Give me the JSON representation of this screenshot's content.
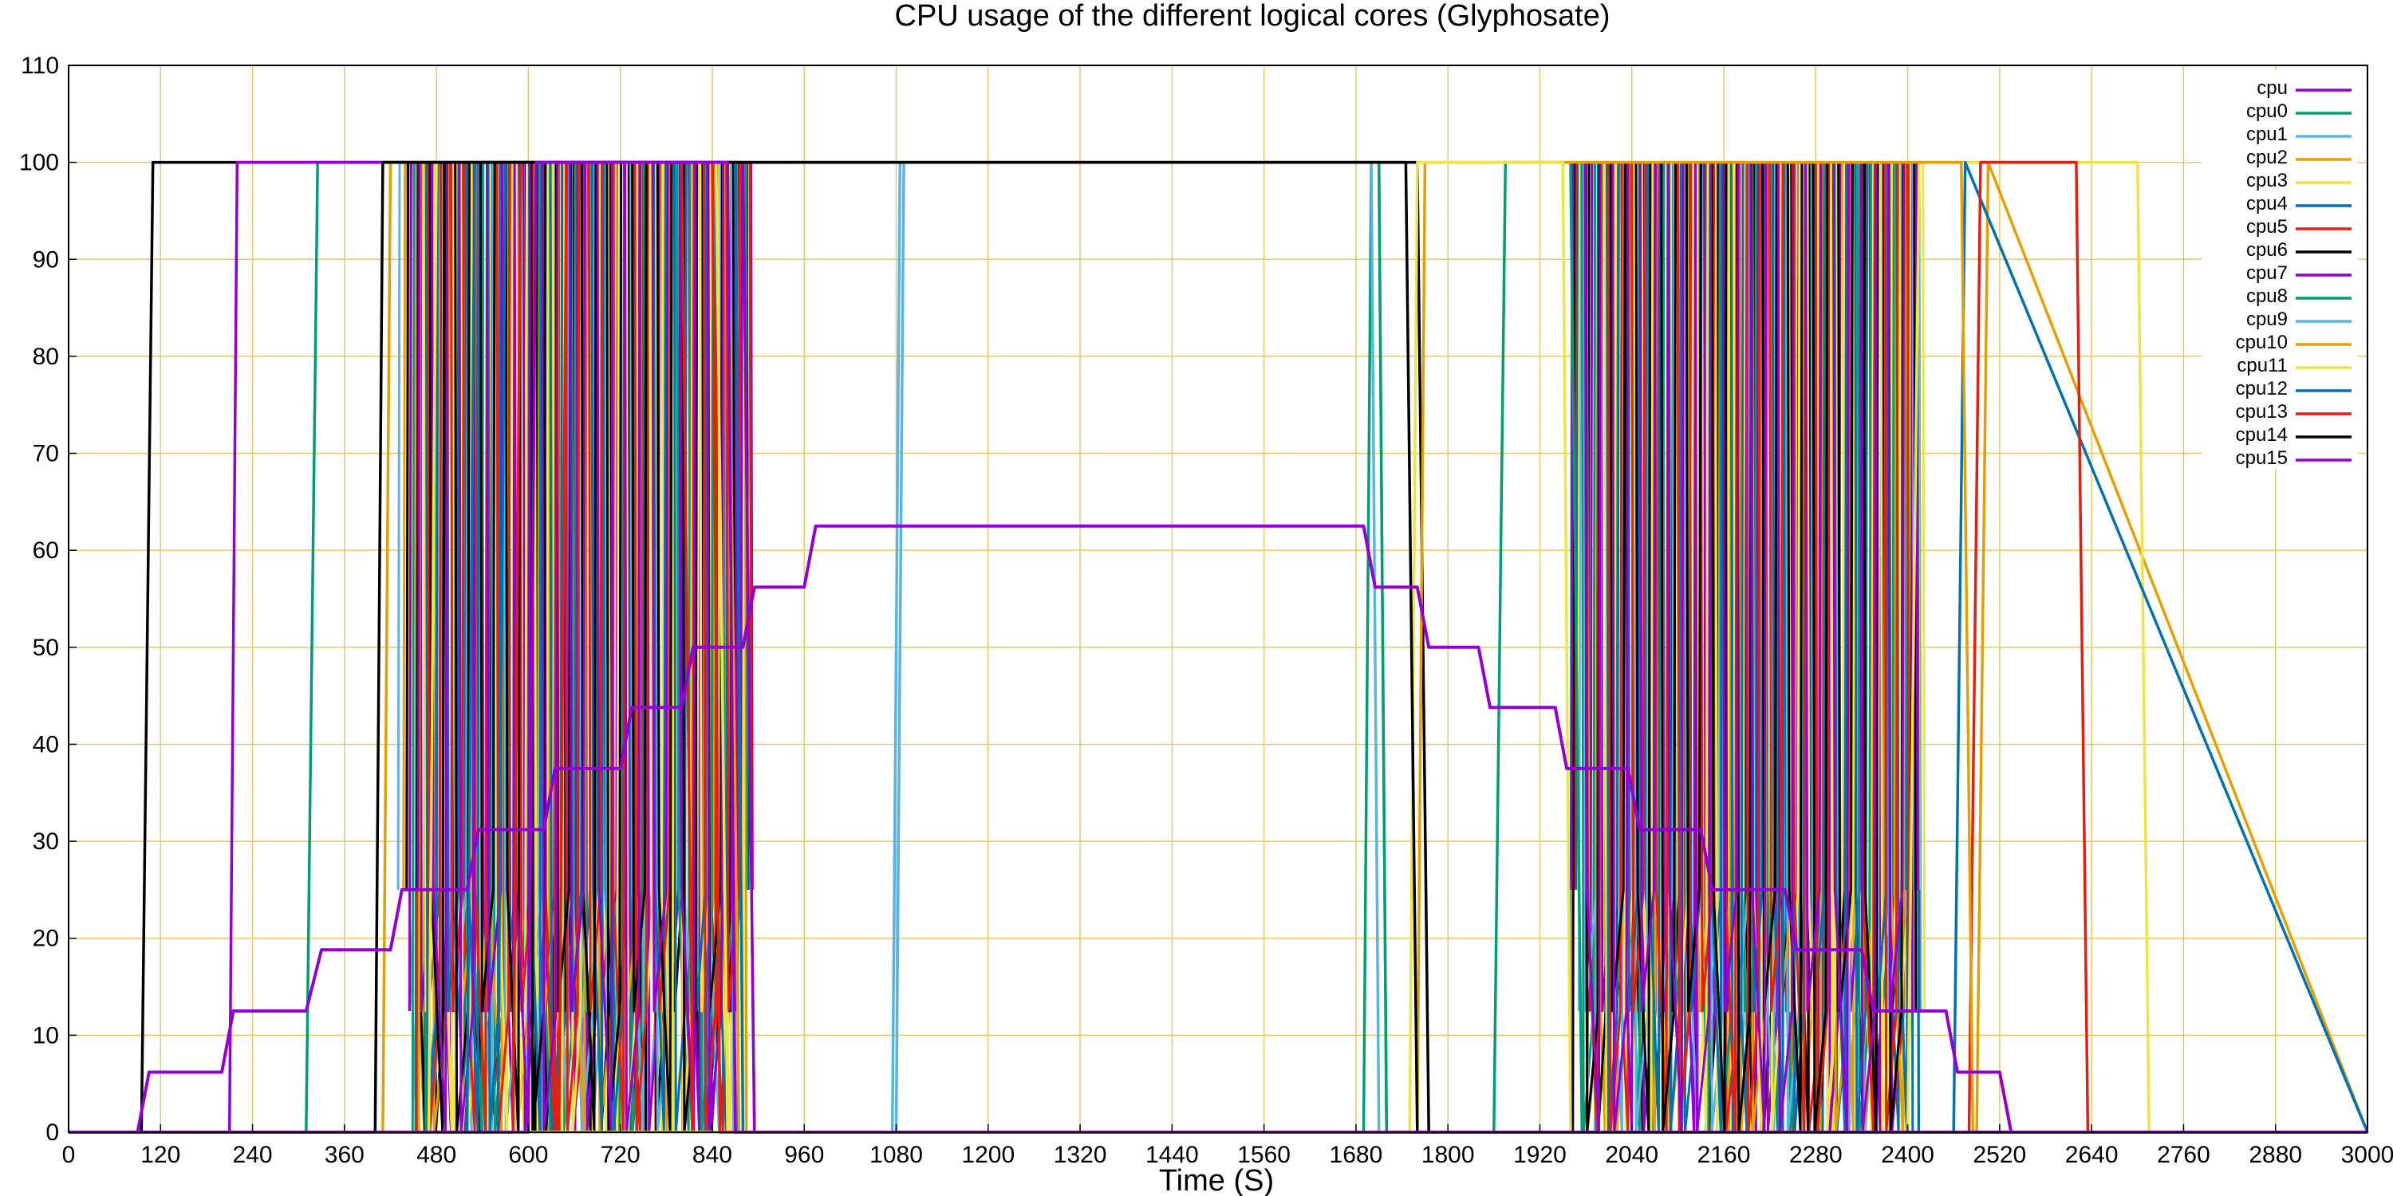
{
  "chart_data": {
    "type": "line",
    "title": "CPU usage of the different logical cores (Glyphosate)",
    "xlabel": "Time (S)",
    "ylabel": "",
    "xlim": [
      0,
      3000
    ],
    "ylim": [
      0,
      110
    ],
    "xticks": [
      0,
      120,
      240,
      360,
      480,
      600,
      720,
      840,
      960,
      1080,
      1200,
      1320,
      1440,
      1560,
      1680,
      1800,
      1920,
      2040,
      2160,
      2280,
      2400,
      2520,
      2640,
      2760,
      2880,
      3000
    ],
    "yticks": [
      0,
      10,
      20,
      30,
      40,
      50,
      60,
      70,
      80,
      90,
      100,
      110
    ],
    "grid": true,
    "legend_position": "top-right",
    "series": [
      {
        "name": "cpu",
        "color": "#9400d3",
        "x": [
          0,
          90,
          105,
          200,
          215,
          310,
          330,
          420,
          435,
          520,
          535,
          620,
          635,
          720,
          735,
          800,
          815,
          880,
          895,
          960,
          975,
          1050,
          1065,
          1690,
          1705,
          1760,
          1775,
          1840,
          1855,
          1940,
          1955,
          2035,
          2050,
          2130,
          2145,
          2240,
          2255,
          2340,
          2355,
          2450,
          2465,
          2520,
          2535,
          2620,
          2635,
          2700,
          2715,
          3000
        ],
        "values": [
          0,
          0,
          6.2,
          6.2,
          12.5,
          12.5,
          18.8,
          18.8,
          25,
          25,
          31.2,
          31.2,
          37.5,
          37.5,
          43.8,
          43.8,
          50,
          50,
          56.2,
          56.2,
          62.5,
          62.5,
          62.5,
          62.5,
          56.2,
          56.2,
          50,
          50,
          43.8,
          43.8,
          37.5,
          37.5,
          31.2,
          31.2,
          25,
          25,
          18.8,
          18.8,
          12.5,
          12.5,
          6.2,
          6.2,
          0,
          0,
          0,
          0,
          0,
          0
        ]
      },
      {
        "name": "cpu0",
        "color": "#009e73",
        "x": [
          0,
          310,
          325,
          880,
          895,
          1860,
          1875,
          1960,
          1975,
          3000
        ],
        "values": [
          0,
          0,
          100,
          100,
          0,
          0,
          100,
          100,
          0,
          0
        ]
      },
      {
        "name": "cpu1",
        "color": "#56b4e9",
        "x": [
          0,
          1075,
          1085,
          1710,
          1720,
          3000
        ],
        "values": [
          0,
          0,
          100,
          100,
          0,
          0
        ]
      },
      {
        "name": "cpu2",
        "color": "#e69f00",
        "x": [
          0,
          410,
          420,
          860,
          875,
          2490,
          2505,
          3000
        ],
        "values": [
          0,
          0,
          100,
          100,
          0,
          0,
          100,
          0
        ]
      },
      {
        "name": "cpu3",
        "color": "#f0e442",
        "x": [
          0,
          470,
          480,
          845,
          860,
          2400,
          2415,
          2700,
          2715,
          3000
        ],
        "values": [
          0,
          0,
          100,
          100,
          0,
          0,
          100,
          100,
          0,
          0
        ]
      },
      {
        "name": "cpu4",
        "color": "#0072b2",
        "x": [
          0,
          520,
          530,
          870,
          880,
          2460,
          2475,
          3000
        ],
        "values": [
          0,
          0,
          100,
          100,
          0,
          0,
          100,
          0
        ]
      },
      {
        "name": "cpu5",
        "color": "#e51e10",
        "x": [
          0,
          640,
          650,
          800,
          815,
          2480,
          2495,
          2620,
          2635,
          3000
        ],
        "values": [
          0,
          0,
          100,
          100,
          0,
          0,
          100,
          100,
          0,
          0
        ]
      },
      {
        "name": "cpu6",
        "color": "#000000",
        "x": [
          0,
          95,
          110,
          960,
          975,
          1760,
          1775,
          3000
        ],
        "values": [
          0,
          0,
          100,
          100,
          100,
          100,
          0,
          0
        ]
      },
      {
        "name": "cpu7",
        "color": "#9400d3",
        "x": [
          0,
          210,
          220,
          880,
          895,
          3000
        ],
        "values": [
          0,
          0,
          100,
          100,
          0,
          0
        ]
      },
      {
        "name": "cpu8",
        "color": "#009e73",
        "x": [
          0,
          1690,
          1700,
          1710,
          1720,
          3000
        ],
        "values": [
          0,
          0,
          100,
          100,
          0,
          0
        ]
      },
      {
        "name": "cpu9",
        "color": "#56b4e9",
        "x": [
          0,
          1080,
          1090,
          1700,
          1710,
          3000
        ],
        "values": [
          0,
          0,
          100,
          100,
          0,
          0
        ]
      },
      {
        "name": "cpu10",
        "color": "#e69f00",
        "x": [
          0,
          1760,
          1770,
          2470,
          2485,
          3000
        ],
        "values": [
          0,
          0,
          100,
          100,
          0,
          0
        ]
      },
      {
        "name": "cpu11",
        "color": "#f0e442",
        "x": [
          0,
          1750,
          1760,
          1950,
          1960,
          3000
        ],
        "values": [
          0,
          0,
          100,
          100,
          0,
          0
        ]
      },
      {
        "name": "cpu12",
        "color": "#0072b2",
        "x": [
          0,
          560,
          570,
          860,
          870,
          3000
        ],
        "values": [
          0,
          0,
          100,
          100,
          0,
          0
        ]
      },
      {
        "name": "cpu13",
        "color": "#e51e10",
        "x": [
          0,
          580,
          590,
          840,
          850,
          3000
        ],
        "values": [
          0,
          0,
          100,
          100,
          0,
          0
        ]
      },
      {
        "name": "cpu14",
        "color": "#000000",
        "x": [
          0,
          400,
          410,
          980,
          995,
          1745,
          1760,
          3000
        ],
        "values": [
          0,
          0,
          100,
          100,
          100,
          100,
          0,
          0
        ]
      },
      {
        "name": "cpu15",
        "color": "#9400d3",
        "x": [
          0,
          600,
          610,
          860,
          870,
          3000
        ],
        "values": [
          0,
          0,
          100,
          100,
          0,
          0
        ]
      }
    ],
    "oscillation_bands": [
      {
        "x_start": 430,
        "x_end": 880,
        "series": [
          "cpu1",
          "cpu2",
          "cpu3",
          "cpu4",
          "cpu5",
          "cpu6",
          "cpu7",
          "cpu8",
          "cpu9",
          "cpu10",
          "cpu11",
          "cpu12",
          "cpu13",
          "cpu14",
          "cpu15"
        ]
      },
      {
        "x_start": 1960,
        "x_end": 2410,
        "series": [
          "cpu1",
          "cpu2",
          "cpu3",
          "cpu4",
          "cpu5",
          "cpu6",
          "cpu7",
          "cpu8",
          "cpu9",
          "cpu10",
          "cpu11",
          "cpu12",
          "cpu13",
          "cpu14",
          "cpu15"
        ]
      }
    ]
  }
}
